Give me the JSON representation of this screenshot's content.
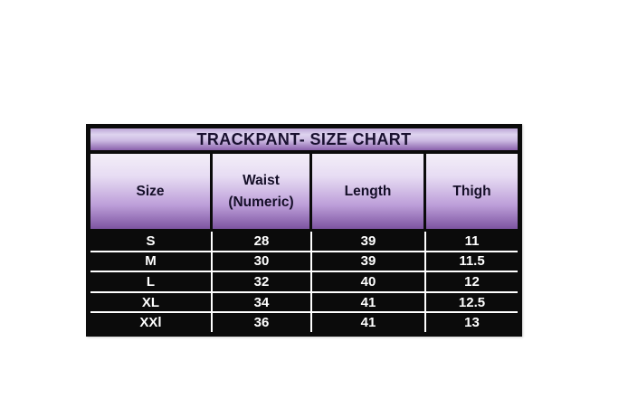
{
  "colors": {
    "page_background": "#ffffff",
    "table_border": "#0b0b0b",
    "header_gradient_light": "#f3eef8",
    "header_gradient_dark": "#7d54a1",
    "title_band_light": "#ded4ef",
    "title_band_dark": "#8a61ad",
    "row_background": "#0b0b0b",
    "grid_line": "#ffffff",
    "heading_text": "#1a1130",
    "cell_text": "#ffffff"
  },
  "chart_data": {
    "type": "table",
    "title": "TRACKPANT- SIZE CHART",
    "columns": [
      "Size",
      "Waist (Numeric)",
      "Length",
      "Thigh"
    ],
    "rows": [
      [
        "S",
        "28",
        "39",
        "11"
      ],
      [
        "M",
        "30",
        "39",
        "11.5"
      ],
      [
        "L",
        "32",
        "40",
        "12"
      ],
      [
        "XL",
        "34",
        "41",
        "12.5"
      ],
      [
        "XXl",
        "36",
        "41",
        "13"
      ]
    ]
  }
}
